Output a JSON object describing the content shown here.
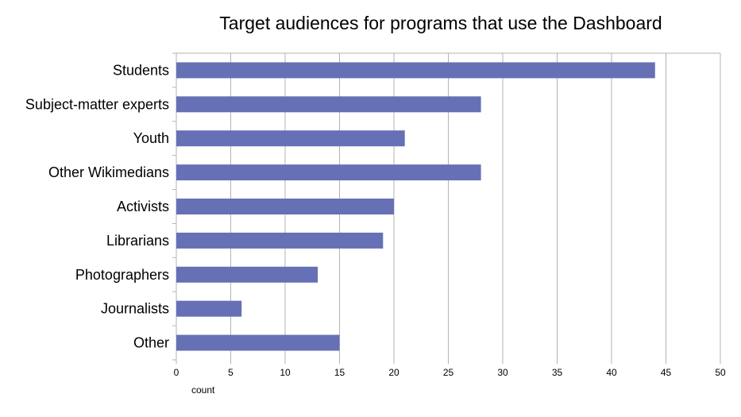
{
  "chart_data": {
    "type": "bar",
    "orientation": "horizontal",
    "title": "Target audiences for programs that use the Dashboard",
    "xlabel": "count",
    "ylabel": "",
    "categories": [
      "Students",
      "Subject-matter experts",
      "Youth",
      "Other Wikimedians",
      "Activists",
      "Librarians",
      "Photographers",
      "Journalists",
      "Other"
    ],
    "values": [
      44,
      28,
      21,
      28,
      20,
      19,
      13,
      6,
      15
    ],
    "xlim": [
      0,
      50
    ],
    "xticks": [
      0,
      5,
      10,
      15,
      20,
      25,
      30,
      35,
      40,
      45,
      50
    ],
    "grid": "vertical",
    "legend": "none",
    "colors": {
      "bar": "#6670b5",
      "grid": "#b3b3b3"
    }
  }
}
